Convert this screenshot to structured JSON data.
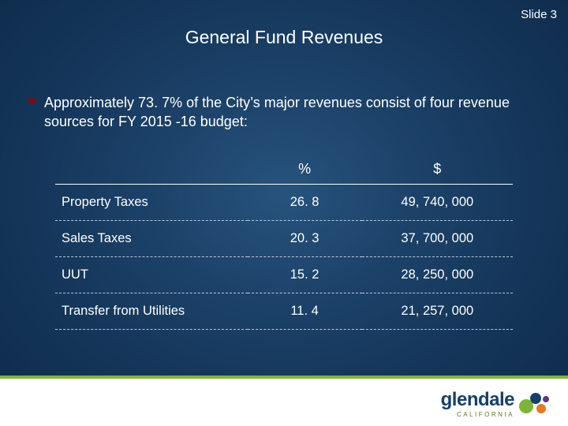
{
  "slide_number": "Slide 3",
  "title": "General Fund Revenues",
  "bullet": "Approximately 73. 7% of the City’s major revenues consist of four revenue sources for FY 2015 -16 budget:",
  "table": {
    "headers": {
      "name": "",
      "pct": "%",
      "amount": "$"
    },
    "rows": [
      {
        "name": "Property Taxes",
        "pct": "26. 8",
        "amount": "49, 740, 000"
      },
      {
        "name": "Sales Taxes",
        "pct": "20. 3",
        "amount": "37, 700, 000"
      },
      {
        "name": "UUT",
        "pct": "15. 2",
        "amount": "28, 250, 000"
      },
      {
        "name": "Transfer from Utilities",
        "pct": "11. 4",
        "amount": "21, 257, 000"
      }
    ]
  },
  "logo": {
    "main": "glendale",
    "sub": "CALIFORNIA"
  },
  "colors": {
    "bg_center": "#27537d",
    "bg_edge": "#0e2a4a",
    "bullet_marker": "#7a0d12",
    "row_dash": "#b8c6d6",
    "footer_bg": "#ffffff",
    "footer_line": "#7fb33b",
    "logo_primary": "#16406a",
    "logo_secondary": "#5a7a1f",
    "bubble_colors": [
      "#7fb33b",
      "#16406a",
      "#e07b2b",
      "#5a3a7a"
    ]
  },
  "typography": {
    "title_fontsize": 23,
    "body_fontsize": 18,
    "table_cell_fontsize": 16.5,
    "logo_main_fontsize": 24,
    "logo_sub_fontsize": 8
  }
}
